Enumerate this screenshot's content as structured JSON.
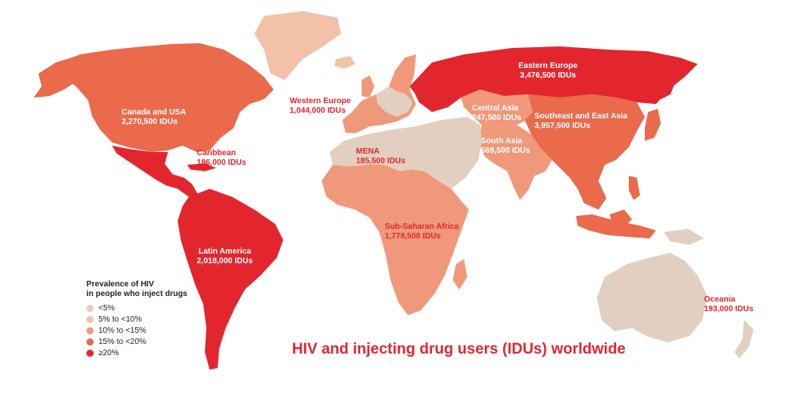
{
  "title": "HIV and injecting drug users (IDUs) worldwide",
  "legend": {
    "title_line1": "Prevalence of HIV",
    "title_line2": "in people who inject drugs",
    "items": [
      {
        "label": "<5%",
        "color": "#e3cfc0"
      },
      {
        "label": "5% to <10%",
        "color": "#f2c1a8"
      },
      {
        "label": "10% to <15%",
        "color": "#f0997a"
      },
      {
        "label": "15% to <20%",
        "color": "#ea6a4b"
      },
      {
        "label": "≥20%",
        "color": "#e3262e"
      }
    ]
  },
  "regions": [
    {
      "key": "canada_usa",
      "name": "Canada and USA",
      "value": "2,270,500 IDUs",
      "color": "#ea6a4b"
    },
    {
      "key": "caribbean",
      "name": "Caribbean",
      "value": "186,000 IDUs",
      "color": "#e3262e"
    },
    {
      "key": "latin_america",
      "name": "Latin America",
      "value": "2,018,000 IDUs",
      "color": "#e3262e"
    },
    {
      "key": "western_europe",
      "name": "Western Europe",
      "value": "1,044,000 IDUs",
      "color": "#f0997a"
    },
    {
      "key": "eastern_europe",
      "name": "Eastern Europe",
      "value": "3,476,500 IDUs",
      "color": "#e3262e"
    },
    {
      "key": "central_asia",
      "name": "Central Asia",
      "value": "247,500 IDUs",
      "color": "#f0997a"
    },
    {
      "key": "southeast_east_asia",
      "name": "Southeast and East Asia",
      "value": "3,957,500 IDUs",
      "color": "#ea6a4b"
    },
    {
      "key": "south_asia",
      "name": "South Asia",
      "value": "569,500 IDUs",
      "color": "#f0997a"
    },
    {
      "key": "mena",
      "name": "MENA",
      "value": "185,500 IDUs",
      "color": "#e3cfc0"
    },
    {
      "key": "sub_saharan_africa",
      "name": "Sub-Saharan Africa",
      "value": "1,778,500 IDUs",
      "color": "#f0997a"
    },
    {
      "key": "oceania",
      "name": "Oceania",
      "value": "193,000 IDUs",
      "color": "#e3cfc0"
    }
  ]
}
